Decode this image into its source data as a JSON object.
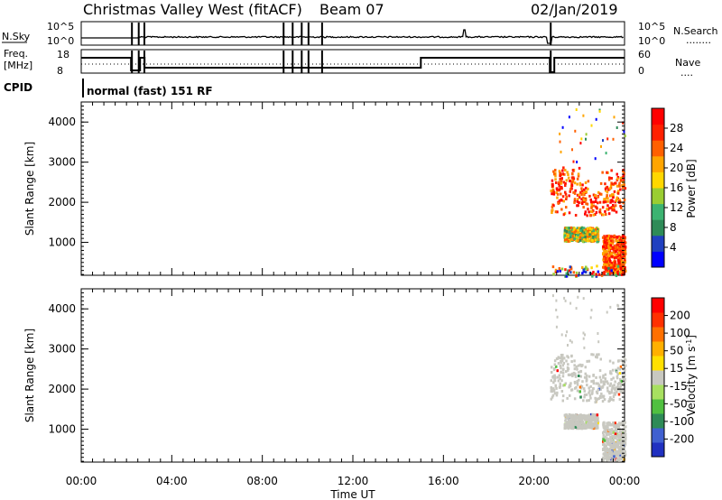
{
  "header": {
    "title": "Christmas Valley West (fitACF)",
    "beam": "Beam 07",
    "date": "02/Jan/2019"
  },
  "top_panels": {
    "nsky_label": "N.Sky",
    "nsearch_label": "N.Search",
    "freq_label_line1": "Freq.",
    "freq_label_line2": "[MHz]",
    "nave_label": "Nave",
    "cpid_label": "CPID",
    "cpid_text": "normal (fast) 151 RF",
    "noise_ticks_left": [
      "10^5",
      "10^0"
    ],
    "noise_ticks_right": [
      "10^5",
      "10^0"
    ],
    "freq_ticks": [
      "18",
      "8"
    ],
    "nave_ticks": [
      "60",
      "0"
    ],
    "dotted_key": "........",
    "dotted_key2": "...."
  },
  "x_axis": {
    "label": "Time UT",
    "ticks": [
      "00:00",
      "04:00",
      "08:00",
      "12:00",
      "16:00",
      "20:00",
      "00:00"
    ]
  },
  "colors": {
    "power_scale": [
      "#0000ff",
      "#2040c0",
      "#2e8b57",
      "#3cb371",
      "#9acd32",
      "#ffd700",
      "#ffa500",
      "#ff6000",
      "#ff2000",
      "#ff0000"
    ],
    "velocity_scale": [
      "#2030c0",
      "#4060d0",
      "#2e8b57",
      "#50c040",
      "#a8e060",
      "#c8c8c0",
      "#ffe000",
      "#ffb000",
      "#ff7000",
      "#ff3000",
      "#ff0000"
    ]
  },
  "chart_data": [
    {
      "type": "heatmap",
      "name": "power",
      "ylabel": "Slant Range [km]",
      "xlim": [
        0,
        24
      ],
      "ylim": [
        180,
        4500
      ],
      "yticks": [
        1000,
        2000,
        3000,
        4000
      ],
      "colorbar": {
        "label": "Power [dB]",
        "ticks": [
          "28",
          "24",
          "20",
          "16",
          "12",
          "8",
          "4"
        ]
      },
      "echo_regions": [
        {
          "t": [
            20.7,
            24.0
          ],
          "range": [
            1700,
            2900
          ],
          "level": "high"
        },
        {
          "t": [
            21.3,
            22.8
          ],
          "range": [
            1050,
            1400
          ],
          "level": "mid"
        },
        {
          "t": [
            23.0,
            24.0
          ],
          "range": [
            250,
            1200
          ],
          "level": "high"
        },
        {
          "t": [
            20.7,
            24.0
          ],
          "range": [
            180,
            450
          ],
          "level": "sparse"
        }
      ]
    },
    {
      "type": "heatmap",
      "name": "velocity",
      "ylabel": "Slant Range [km]",
      "xlim": [
        0,
        24
      ],
      "ylim": [
        180,
        4500
      ],
      "yticks": [
        1000,
        2000,
        3000,
        4000
      ],
      "colorbar": {
        "label": "Velocity [m s^-1]",
        "ticks": [
          "200",
          "100",
          "50",
          "15",
          "-15",
          "-50",
          "-100",
          "-200"
        ]
      },
      "echo_regions": [
        {
          "t": [
            20.7,
            24.0
          ],
          "range": [
            1700,
            2900
          ],
          "level": "ground"
        },
        {
          "t": [
            21.3,
            22.8
          ],
          "range": [
            1050,
            1400
          ],
          "level": "ground"
        },
        {
          "t": [
            23.0,
            24.0
          ],
          "range": [
            250,
            1200
          ],
          "level": "ground"
        }
      ]
    }
  ]
}
